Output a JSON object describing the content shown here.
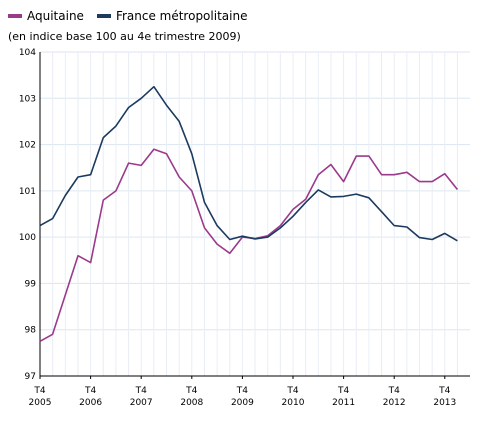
{
  "chart_data": {
    "type": "line",
    "subtitle": "(en indice base 100 au 4e trimestre 2009)",
    "legend_position": "top-left",
    "grid": true,
    "ylim": [
      97,
      104
    ],
    "yticks": [
      97,
      98,
      99,
      100,
      101,
      102,
      103,
      104
    ],
    "x_start": "T4 2005",
    "x_frequency": "quarterly",
    "xticks": [
      {
        "label": "T4",
        "year": "2005",
        "index": 0
      },
      {
        "label": "T4",
        "year": "2006",
        "index": 4
      },
      {
        "label": "T4",
        "year": "2007",
        "index": 8
      },
      {
        "label": "T4",
        "year": "2008",
        "index": 12
      },
      {
        "label": "T4",
        "year": "2009",
        "index": 16
      },
      {
        "label": "T4",
        "year": "2010",
        "index": 20
      },
      {
        "label": "T4",
        "year": "2011",
        "index": 24
      },
      {
        "label": "T4",
        "year": "2012",
        "index": 28
      },
      {
        "label": "T4",
        "year": "2013",
        "index": 32
      }
    ],
    "series": [
      {
        "name": "Aquitaine",
        "color": "#9b3a8c",
        "values": [
          97.75,
          97.9,
          98.75,
          99.6,
          99.45,
          100.8,
          101.0,
          101.6,
          101.55,
          101.9,
          101.8,
          101.3,
          101.0,
          100.2,
          99.85,
          99.65,
          100.0,
          99.97,
          100.03,
          100.25,
          100.6,
          100.82,
          101.35,
          101.57,
          101.2,
          101.75,
          101.75,
          101.35,
          101.35,
          101.4,
          101.2,
          101.2,
          101.37,
          101.03
        ]
      },
      {
        "name": "France métropolitaine",
        "color": "#1c3a5e",
        "values": [
          100.25,
          100.4,
          100.9,
          101.3,
          101.35,
          102.15,
          102.4,
          102.8,
          103.0,
          103.25,
          102.85,
          102.5,
          101.8,
          100.75,
          100.25,
          99.95,
          100.02,
          99.96,
          100.0,
          100.2,
          100.45,
          100.75,
          101.02,
          100.87,
          100.88,
          100.93,
          100.85,
          100.55,
          100.25,
          100.22,
          99.99,
          99.95,
          100.08,
          99.92
        ]
      }
    ]
  }
}
